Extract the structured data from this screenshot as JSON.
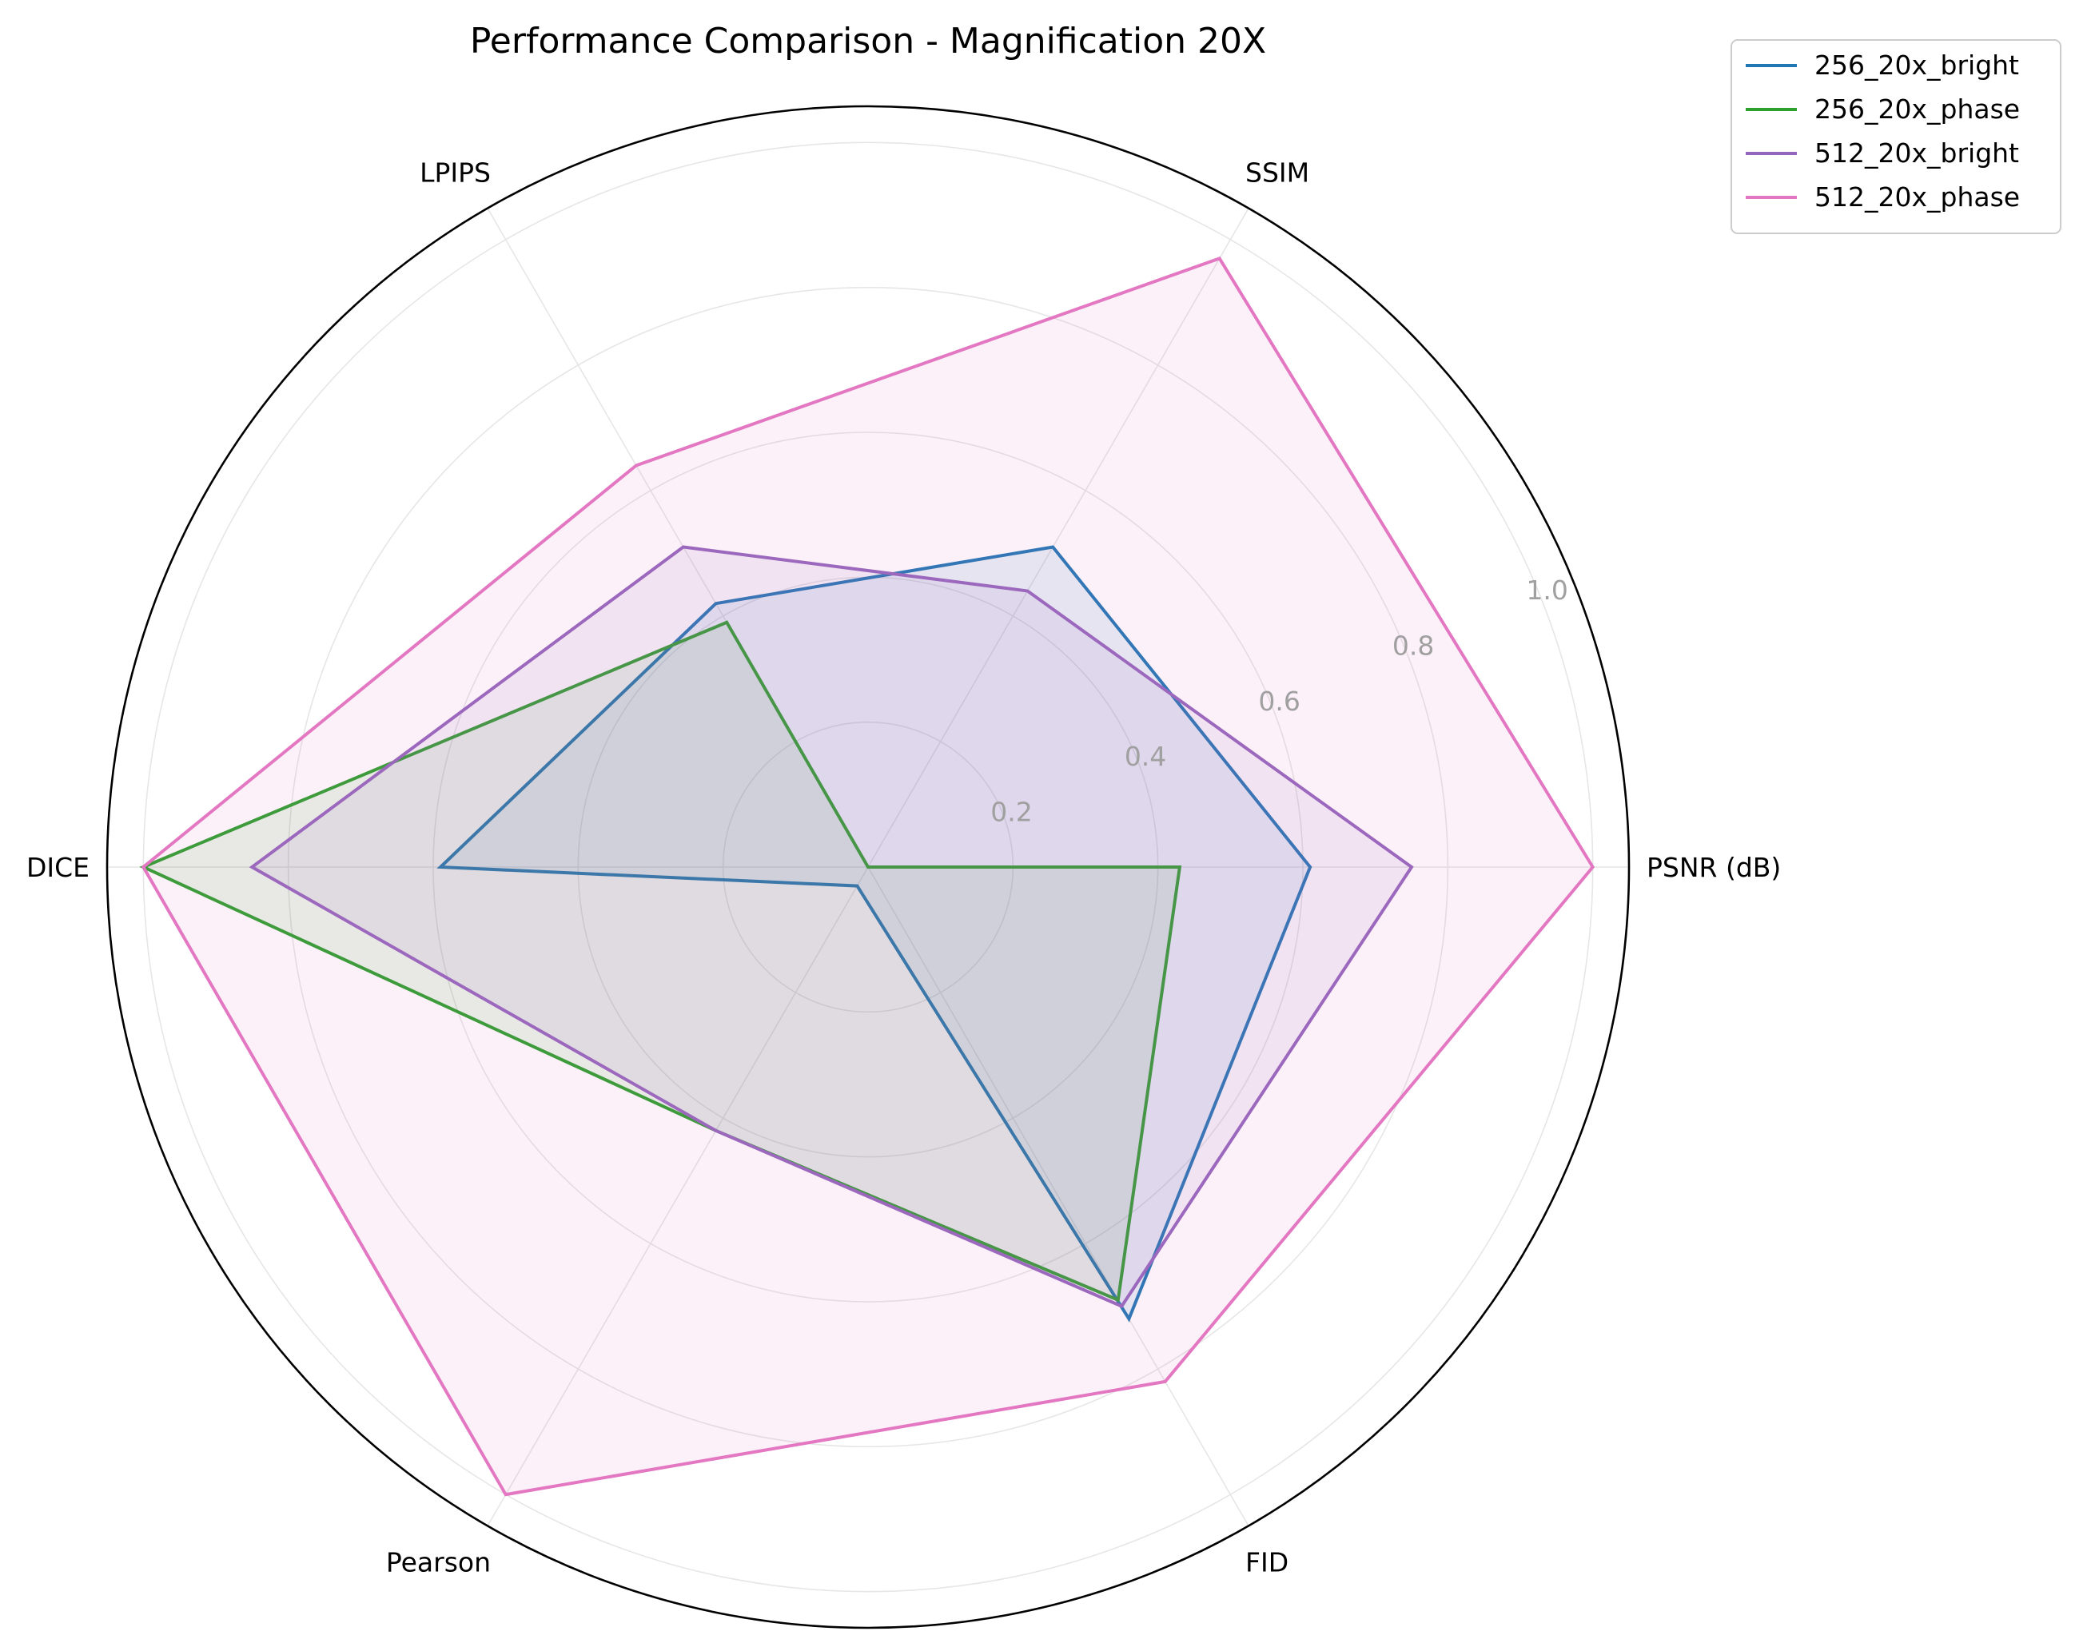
{
  "chart_data": {
    "type": "radar",
    "title": "Performance Comparison - Magnification 20X",
    "axes": [
      "PSNR (dB)",
      "SSIM",
      "LPIPS",
      "DICE",
      "Pearson",
      "FID"
    ],
    "radial_ticks": [
      "0.2",
      "0.4",
      "0.6",
      "0.8",
      "1.0"
    ],
    "radial_tick_values": [
      0.2,
      0.4,
      0.6,
      0.8,
      1.0
    ],
    "rlim": [
      0,
      1.05
    ],
    "grid": true,
    "legend_position": "upper-right outside plot",
    "series": [
      {
        "name": "256_20x_bright",
        "color": "#1f77b4",
        "values": [
          0.61,
          0.51,
          0.42,
          0.59,
          0.03,
          0.72
        ]
      },
      {
        "name": "256_20x_phase",
        "color": "#2ca02c",
        "values": [
          0.43,
          0.0,
          0.39,
          1.0,
          0.42,
          0.69
        ]
      },
      {
        "name": "512_20x_bright",
        "color": "#9467bd",
        "values": [
          0.75,
          0.44,
          0.51,
          0.85,
          0.42,
          0.7
        ]
      },
      {
        "name": "512_20x_phase",
        "color": "#e377c2",
        "values": [
          1.0,
          0.97,
          0.64,
          1.0,
          1.0,
          0.82
        ]
      }
    ]
  }
}
